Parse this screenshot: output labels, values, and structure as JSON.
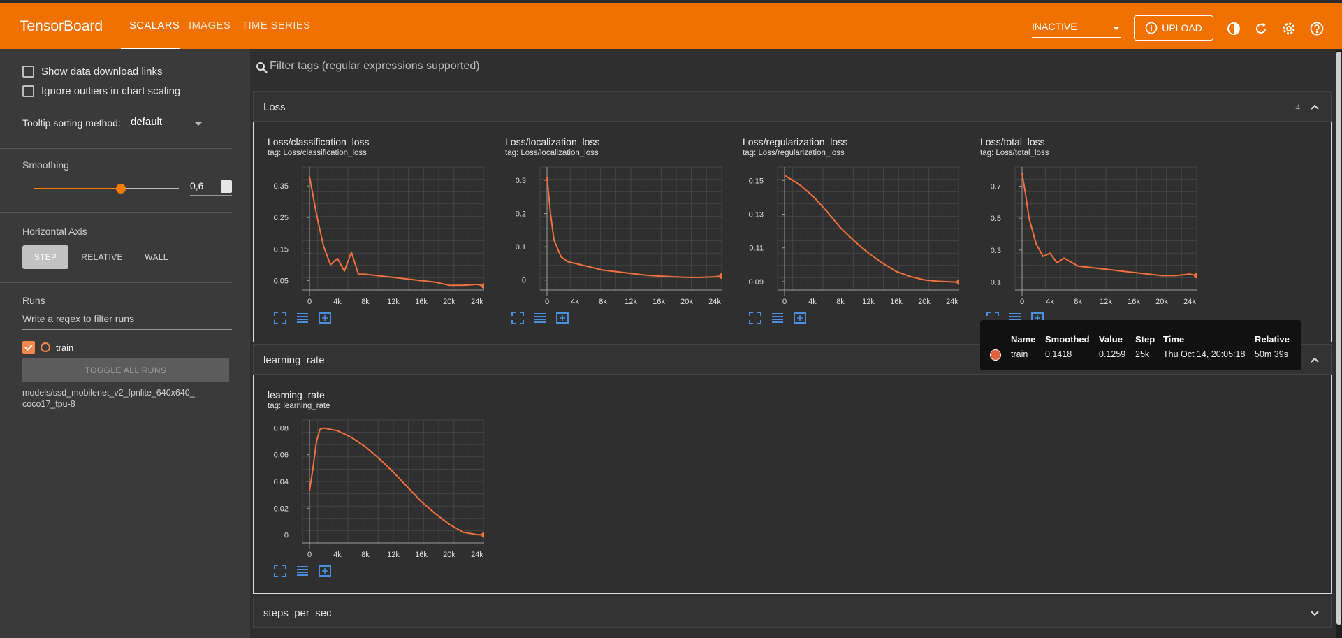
{
  "app": {
    "title": "TensorBoard"
  },
  "nav": {
    "tabs": [
      {
        "label": "SCALARS"
      },
      {
        "label": "IMAGES"
      },
      {
        "label": "TIME SERIES"
      }
    ]
  },
  "header": {
    "run_state": "INACTIVE",
    "upload_label": "UPLOAD"
  },
  "sidebar": {
    "show_download_links": "Show data download links",
    "ignore_outliers": "Ignore outliers in chart scaling",
    "tooltip_sorting_label": "Tooltip sorting method:",
    "tooltip_sorting_value": "default",
    "smoothing_label": "Smoothing",
    "smoothing_value": "0,6",
    "smoothing_level": 0.6,
    "horizontal_axis_label": "Horizontal Axis",
    "axis_options": [
      "STEP",
      "RELATIVE",
      "WALL"
    ],
    "runs_label": "Runs",
    "runs_filter_placeholder": "Write a regex to filter runs",
    "run_name": "train",
    "toggle_all": "TOGGLE ALL RUNS",
    "run_path": "models/ssd_mobilenet_v2_fpnlite_640x640_\ncoco17_tpu-8"
  },
  "filter": {
    "placeholder": "Filter tags (regular expressions supported)"
  },
  "groups": [
    {
      "title": "Loss",
      "count": "4"
    },
    {
      "title": "learning_rate"
    },
    {
      "title": "steps_per_sec"
    }
  ],
  "colors": {
    "accent": "#f07000",
    "series": "#f4703c"
  },
  "tooltip": {
    "headers": [
      "Name",
      "Smoothed",
      "Value",
      "Step",
      "Time",
      "Relative"
    ],
    "row": [
      "train",
      "0.1418",
      "0.1259",
      "25k",
      "Thu Oct 14, 20:05:18",
      "50m 39s"
    ]
  },
  "chart_data": [
    {
      "type": "line",
      "title": "Loss/classification_loss",
      "tag": "tag: Loss/classification_loss",
      "xticks": [
        "0",
        "4k",
        "8k",
        "12k",
        "16k",
        "20k",
        "24k"
      ],
      "yticks": [
        "0.05",
        "0.15",
        "0.25",
        "0.35"
      ],
      "xlim": [
        -1000,
        25000
      ],
      "ylim": [
        0.02,
        0.41
      ],
      "x": [
        0,
        500,
        1000,
        2000,
        3000,
        4000,
        5000,
        6000,
        7000,
        8000,
        10000,
        12000,
        14000,
        16000,
        18000,
        20000,
        22000,
        24000,
        25000
      ],
      "y": [
        0.38,
        0.32,
        0.26,
        0.16,
        0.1,
        0.12,
        0.08,
        0.14,
        0.07,
        0.07,
        0.065,
        0.06,
        0.055,
        0.05,
        0.045,
        0.035,
        0.035,
        0.038,
        0.033
      ]
    },
    {
      "type": "line",
      "title": "Loss/localization_loss",
      "tag": "tag: Loss/localization_loss",
      "xticks": [
        "0",
        "4k",
        "8k",
        "12k",
        "16k",
        "20k",
        "24k"
      ],
      "yticks": [
        "0",
        "0.1",
        "0.2",
        "0.3"
      ],
      "xlim": [
        -1000,
        25000
      ],
      "ylim": [
        -0.03,
        0.34
      ],
      "x": [
        0,
        500,
        1000,
        2000,
        3000,
        4000,
        6000,
        8000,
        10000,
        12000,
        14000,
        16000,
        18000,
        20000,
        22000,
        24000,
        25000
      ],
      "y": [
        0.31,
        0.2,
        0.12,
        0.07,
        0.055,
        0.05,
        0.04,
        0.03,
        0.025,
        0.02,
        0.015,
        0.012,
        0.01,
        0.008,
        0.008,
        0.01,
        0.012
      ]
    },
    {
      "type": "line",
      "title": "Loss/regularization_loss",
      "tag": "tag: Loss/regularization_loss",
      "xticks": [
        "0",
        "4k",
        "8k",
        "12k",
        "16k",
        "20k",
        "24k"
      ],
      "yticks": [
        "0.09",
        "0.11",
        "0.13",
        "0.15"
      ],
      "xlim": [
        -1000,
        25000
      ],
      "ylim": [
        0.085,
        0.158
      ],
      "x": [
        0,
        2000,
        4000,
        6000,
        8000,
        10000,
        12000,
        14000,
        16000,
        18000,
        20000,
        22000,
        24000,
        25000
      ],
      "y": [
        0.153,
        0.148,
        0.141,
        0.132,
        0.122,
        0.114,
        0.107,
        0.101,
        0.096,
        0.093,
        0.091,
        0.0902,
        0.0898,
        0.0897
      ]
    },
    {
      "type": "line",
      "title": "Loss/total_loss",
      "tag": "tag: Loss/total_loss",
      "xticks": [
        "0",
        "4k",
        "8k",
        "12k",
        "16k",
        "20k",
        "24k"
      ],
      "yticks": [
        "0.1",
        "0.3",
        "0.5",
        "0.7"
      ],
      "xlim": [
        -1000,
        25000
      ],
      "ylim": [
        0.05,
        0.82
      ],
      "x": [
        0,
        500,
        1000,
        2000,
        3000,
        4000,
        5000,
        6000,
        8000,
        10000,
        12000,
        14000,
        16000,
        18000,
        20000,
        22000,
        24000,
        25000
      ],
      "y": [
        0.78,
        0.65,
        0.5,
        0.34,
        0.26,
        0.28,
        0.22,
        0.25,
        0.2,
        0.19,
        0.18,
        0.17,
        0.16,
        0.15,
        0.14,
        0.14,
        0.15,
        0.14
      ]
    },
    {
      "type": "line",
      "title": "learning_rate",
      "tag": "tag: learning_rate",
      "xticks": [
        "0",
        "4k",
        "8k",
        "12k",
        "16k",
        "20k",
        "24k"
      ],
      "yticks": [
        "0",
        "0.02",
        "0.04",
        "0.06",
        "0.08"
      ],
      "xlim": [
        -1000,
        25000
      ],
      "ylim": [
        -0.006,
        0.086
      ],
      "x": [
        0,
        500,
        1000,
        1500,
        2000,
        4000,
        6000,
        8000,
        10000,
        12000,
        14000,
        16000,
        18000,
        20000,
        22000,
        24000,
        25000
      ],
      "y": [
        0.033,
        0.05,
        0.07,
        0.079,
        0.08,
        0.078,
        0.073,
        0.066,
        0.057,
        0.047,
        0.036,
        0.025,
        0.016,
        0.008,
        0.002,
        0.0002,
        0.0
      ]
    }
  ]
}
